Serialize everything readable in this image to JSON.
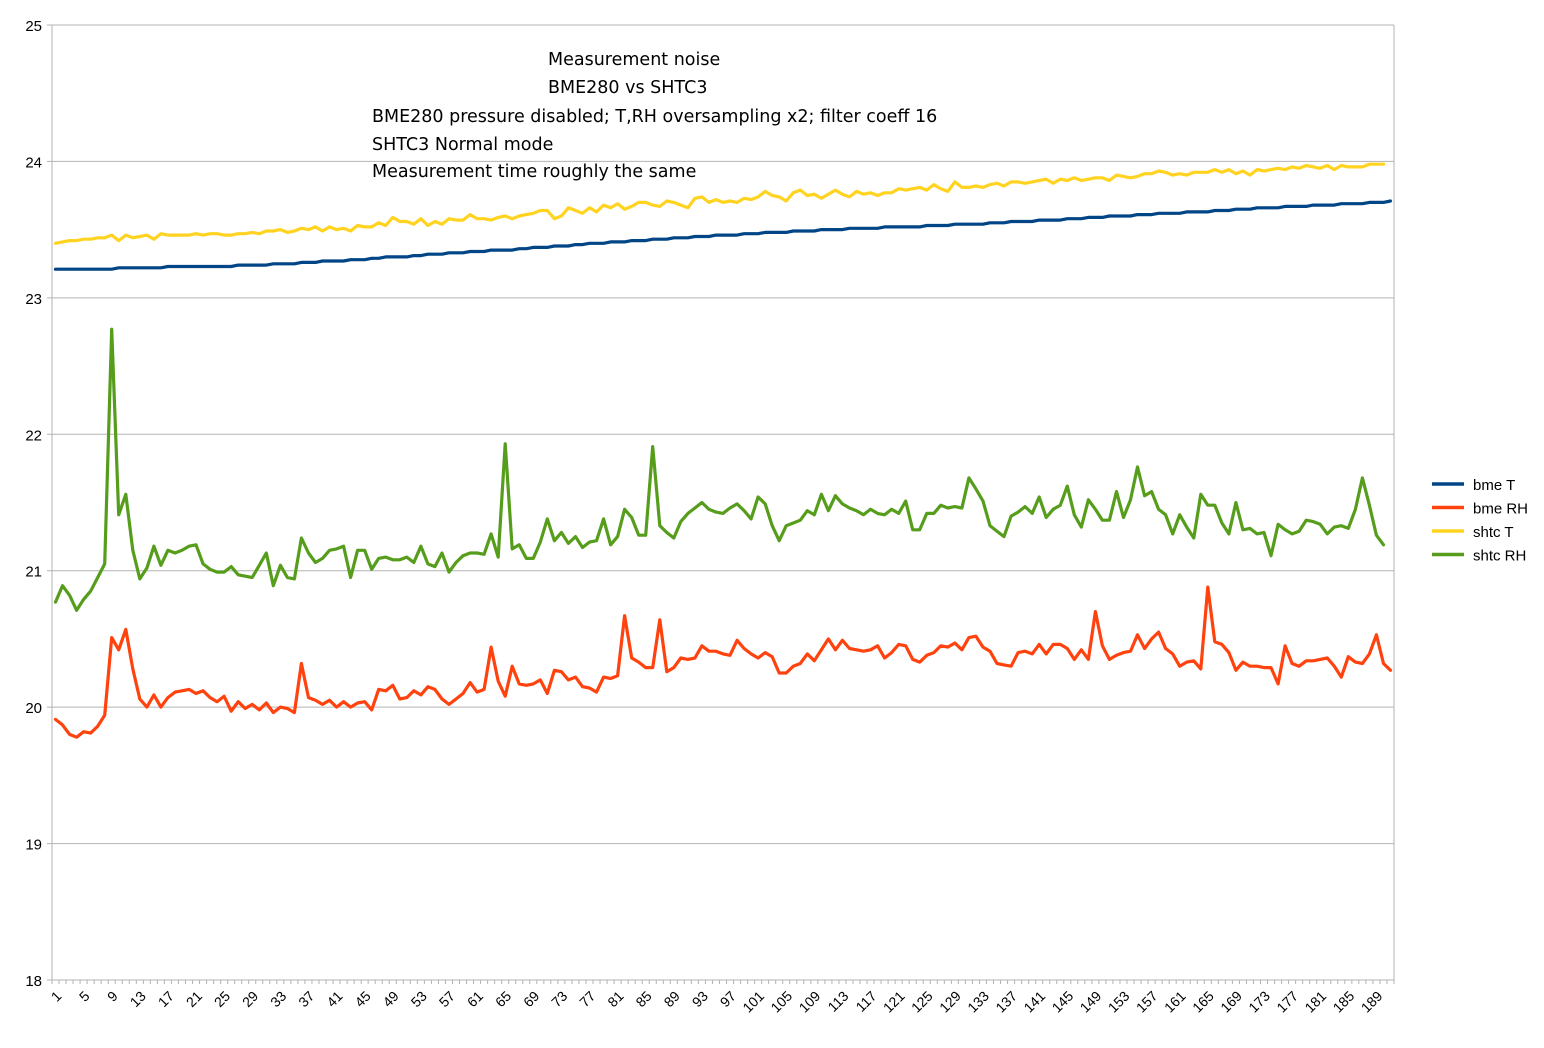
{
  "chart_data": {
    "type": "line",
    "annotations": [
      "Measurement noise",
      "BME280 vs SHTC3",
      "BME280 pressure disabled; T,RH oversampling x2; filter coeff 16",
      "SHTC3 Normal mode",
      "Measurement time roughly the same"
    ],
    "ylim": [
      18,
      25
    ],
    "yticks": [
      18,
      19,
      20,
      21,
      22,
      23,
      24,
      25
    ],
    "x_range": [
      1,
      191
    ],
    "xticks": [
      1,
      5,
      9,
      13,
      17,
      21,
      25,
      29,
      33,
      37,
      41,
      45,
      49,
      53,
      57,
      61,
      65,
      69,
      73,
      77,
      81,
      85,
      89,
      93,
      97,
      101,
      105,
      109,
      113,
      117,
      121,
      125,
      129,
      133,
      137,
      141,
      145,
      149,
      153,
      157,
      161,
      165,
      169,
      173,
      177,
      181,
      185,
      189
    ],
    "grid": true,
    "legend_position": "right",
    "series": [
      {
        "name": "bme T",
        "color": "#004586",
        "values": [
          23.21,
          23.21,
          23.21,
          23.21,
          23.21,
          23.21,
          23.21,
          23.21,
          23.21,
          23.22,
          23.22,
          23.22,
          23.22,
          23.22,
          23.22,
          23.22,
          23.23,
          23.23,
          23.23,
          23.23,
          23.23,
          23.23,
          23.23,
          23.23,
          23.23,
          23.23,
          23.24,
          23.24,
          23.24,
          23.24,
          23.24,
          23.25,
          23.25,
          23.25,
          23.25,
          23.26,
          23.26,
          23.26,
          23.27,
          23.27,
          23.27,
          23.27,
          23.28,
          23.28,
          23.28,
          23.29,
          23.29,
          23.3,
          23.3,
          23.3,
          23.3,
          23.31,
          23.31,
          23.32,
          23.32,
          23.32,
          23.33,
          23.33,
          23.33,
          23.34,
          23.34,
          23.34,
          23.35,
          23.35,
          23.35,
          23.35,
          23.36,
          23.36,
          23.37,
          23.37,
          23.37,
          23.38,
          23.38,
          23.38,
          23.39,
          23.39,
          23.4,
          23.4,
          23.4,
          23.41,
          23.41,
          23.41,
          23.42,
          23.42,
          23.42,
          23.43,
          23.43,
          23.43,
          23.44,
          23.44,
          23.44,
          23.45,
          23.45,
          23.45,
          23.46,
          23.46,
          23.46,
          23.46,
          23.47,
          23.47,
          23.47,
          23.48,
          23.48,
          23.48,
          23.48,
          23.49,
          23.49,
          23.49,
          23.49,
          23.5,
          23.5,
          23.5,
          23.5,
          23.51,
          23.51,
          23.51,
          23.51,
          23.51,
          23.52,
          23.52,
          23.52,
          23.52,
          23.52,
          23.52,
          23.53,
          23.53,
          23.53,
          23.53,
          23.54,
          23.54,
          23.54,
          23.54,
          23.54,
          23.55,
          23.55,
          23.55,
          23.56,
          23.56,
          23.56,
          23.56,
          23.57,
          23.57,
          23.57,
          23.57,
          23.58,
          23.58,
          23.58,
          23.59,
          23.59,
          23.59,
          23.6,
          23.6,
          23.6,
          23.6,
          23.61,
          23.61,
          23.61,
          23.62,
          23.62,
          23.62,
          23.62,
          23.63,
          23.63,
          23.63,
          23.63,
          23.64,
          23.64,
          23.64,
          23.65,
          23.65,
          23.65,
          23.66,
          23.66,
          23.66,
          23.66,
          23.67,
          23.67,
          23.67,
          23.67,
          23.68,
          23.68,
          23.68,
          23.68,
          23.69,
          23.69,
          23.69,
          23.69,
          23.7,
          23.7,
          23.7,
          23.71
        ]
      },
      {
        "name": "bme RH",
        "color": "#ff420e",
        "values": [
          19.91,
          19.87,
          19.8,
          19.78,
          19.82,
          19.81,
          19.86,
          19.94,
          20.51,
          20.42,
          20.57,
          20.28,
          20.06,
          20.0,
          20.09,
          20.0,
          20.07,
          20.11,
          20.12,
          20.13,
          20.1,
          20.12,
          20.07,
          20.04,
          20.08,
          19.97,
          20.04,
          19.99,
          20.02,
          19.98,
          20.03,
          19.96,
          20.0,
          19.99,
          19.96,
          20.32,
          20.07,
          20.05,
          20.02,
          20.05,
          20.0,
          20.04,
          20.0,
          20.03,
          20.04,
          19.98,
          20.13,
          20.12,
          20.16,
          20.06,
          20.07,
          20.12,
          20.09,
          20.15,
          20.13,
          20.06,
          20.02,
          20.06,
          20.1,
          20.18,
          20.11,
          20.13,
          20.44,
          20.19,
          20.08,
          20.3,
          20.17,
          20.16,
          20.17,
          20.2,
          20.1,
          20.27,
          20.26,
          20.2,
          20.22,
          20.15,
          20.14,
          20.11,
          20.22,
          20.21,
          20.23,
          20.67,
          20.36,
          20.33,
          20.29,
          20.29,
          20.64,
          20.26,
          20.29,
          20.36,
          20.35,
          20.36,
          20.45,
          20.41,
          20.41,
          20.39,
          20.38,
          20.49,
          20.43,
          20.39,
          20.36,
          20.4,
          20.37,
          20.25,
          20.25,
          20.3,
          20.32,
          20.39,
          20.34,
          20.42,
          20.5,
          20.42,
          20.49,
          20.43,
          20.42,
          20.41,
          20.42,
          20.45,
          20.36,
          20.4,
          20.46,
          20.45,
          20.35,
          20.33,
          20.38,
          20.4,
          20.45,
          20.44,
          20.47,
          20.42,
          20.51,
          20.52,
          20.44,
          20.41,
          20.32,
          20.31,
          20.3,
          20.4,
          20.41,
          20.39,
          20.46,
          20.39,
          20.46,
          20.46,
          20.43,
          20.35,
          20.42,
          20.35,
          20.7,
          20.45,
          20.35,
          20.38,
          20.4,
          20.41,
          20.53,
          20.43,
          20.5,
          20.55,
          20.43,
          20.39,
          20.3,
          20.33,
          20.34,
          20.28,
          20.88,
          20.48,
          20.46,
          20.4,
          20.27,
          20.33,
          20.3,
          20.3,
          20.29,
          20.29,
          20.17,
          20.45,
          20.32,
          20.3,
          20.34,
          20.34,
          20.35,
          20.36,
          20.3,
          20.22,
          20.37,
          20.33,
          20.32,
          20.39,
          20.53,
          20.32,
          20.27
        ]
      },
      {
        "name": "shtc T",
        "color": "#ffd320",
        "values": [
          23.4,
          23.41,
          23.42,
          23.42,
          23.43,
          23.43,
          23.44,
          23.44,
          23.46,
          23.42,
          23.46,
          23.44,
          23.45,
          23.46,
          23.43,
          23.47,
          23.46,
          23.46,
          23.46,
          23.46,
          23.47,
          23.46,
          23.47,
          23.47,
          23.46,
          23.46,
          23.47,
          23.47,
          23.48,
          23.47,
          23.49,
          23.49,
          23.5,
          23.48,
          23.49,
          23.51,
          23.5,
          23.52,
          23.49,
          23.52,
          23.5,
          23.51,
          23.49,
          23.53,
          23.52,
          23.52,
          23.55,
          23.53,
          23.59,
          23.56,
          23.56,
          23.54,
          23.58,
          23.53,
          23.56,
          23.54,
          23.58,
          23.57,
          23.57,
          23.61,
          23.58,
          23.58,
          23.57,
          23.59,
          23.6,
          23.58,
          23.6,
          23.61,
          23.62,
          23.64,
          23.64,
          23.58,
          23.6,
          23.66,
          23.64,
          23.62,
          23.66,
          23.63,
          23.68,
          23.66,
          23.69,
          23.65,
          23.67,
          23.7,
          23.7,
          23.68,
          23.67,
          23.71,
          23.7,
          23.68,
          23.66,
          23.73,
          23.74,
          23.7,
          23.72,
          23.7,
          23.71,
          23.7,
          23.73,
          23.72,
          23.74,
          23.78,
          23.75,
          23.74,
          23.71,
          23.77,
          23.79,
          23.75,
          23.76,
          23.73,
          23.76,
          23.79,
          23.76,
          23.74,
          23.78,
          23.76,
          23.77,
          23.75,
          23.77,
          23.77,
          23.8,
          23.79,
          23.8,
          23.81,
          23.79,
          23.83,
          23.8,
          23.78,
          23.85,
          23.81,
          23.81,
          23.82,
          23.81,
          23.83,
          23.84,
          23.82,
          23.85,
          23.85,
          23.84,
          23.85,
          23.86,
          23.87,
          23.84,
          23.87,
          23.86,
          23.88,
          23.86,
          23.87,
          23.88,
          23.88,
          23.86,
          23.9,
          23.89,
          23.88,
          23.89,
          23.91,
          23.91,
          23.93,
          23.92,
          23.9,
          23.91,
          23.9,
          23.92,
          23.92,
          23.92,
          23.94,
          23.92,
          23.94,
          23.91,
          23.93,
          23.9,
          23.94,
          23.93,
          23.94,
          23.95,
          23.94,
          23.96,
          23.95,
          23.97,
          23.96,
          23.95,
          23.97,
          23.94,
          23.97,
          23.96,
          23.96,
          23.96,
          23.98,
          23.98,
          23.98
        ]
      },
      {
        "name": "shtc RH",
        "color": "#579d1c",
        "values": [
          20.77,
          20.89,
          20.82,
          20.71,
          20.79,
          20.85,
          20.95,
          21.05,
          22.77,
          21.41,
          21.56,
          21.15,
          20.94,
          21.02,
          21.18,
          21.04,
          21.15,
          21.13,
          21.15,
          21.18,
          21.19,
          21.05,
          21.01,
          20.99,
          20.99,
          21.03,
          20.97,
          20.96,
          20.95,
          21.04,
          21.13,
          20.89,
          21.04,
          20.95,
          20.94,
          21.24,
          21.13,
          21.06,
          21.09,
          21.15,
          21.16,
          21.18,
          20.95,
          21.15,
          21.15,
          21.01,
          21.09,
          21.1,
          21.08,
          21.08,
          21.1,
          21.06,
          21.18,
          21.05,
          21.03,
          21.13,
          20.99,
          21.06,
          21.11,
          21.13,
          21.13,
          21.12,
          21.27,
          21.1,
          21.93,
          21.16,
          21.19,
          21.09,
          21.09,
          21.21,
          21.38,
          21.22,
          21.28,
          21.2,
          21.25,
          21.17,
          21.21,
          21.22,
          21.38,
          21.19,
          21.25,
          21.45,
          21.39,
          21.26,
          21.26,
          21.91,
          21.33,
          21.28,
          21.24,
          21.36,
          21.42,
          21.46,
          21.5,
          21.45,
          21.43,
          21.42,
          21.46,
          21.49,
          21.44,
          21.38,
          21.54,
          21.49,
          21.33,
          21.22,
          21.33,
          21.35,
          21.37,
          21.44,
          21.41,
          21.56,
          21.44,
          21.55,
          21.49,
          21.46,
          21.44,
          21.41,
          21.45,
          21.42,
          21.41,
          21.45,
          21.42,
          21.51,
          21.3,
          21.3,
          21.42,
          21.42,
          21.48,
          21.46,
          21.47,
          21.46,
          21.68,
          21.6,
          21.51,
          21.33,
          21.29,
          21.25,
          21.4,
          21.43,
          21.47,
          21.42,
          21.54,
          21.39,
          21.45,
          21.48,
          21.62,
          21.41,
          21.32,
          21.52,
          21.45,
          21.37,
          21.37,
          21.58,
          21.39,
          21.52,
          21.76,
          21.55,
          21.58,
          21.45,
          21.41,
          21.27,
          21.41,
          21.32,
          21.24,
          21.56,
          21.48,
          21.48,
          21.35,
          21.27,
          21.5,
          21.3,
          21.31,
          21.27,
          21.28,
          21.11,
          21.34,
          21.3,
          21.27,
          21.29,
          21.37,
          21.36,
          21.34,
          21.27,
          21.32,
          21.33,
          21.31,
          21.45,
          21.68,
          21.48,
          21.26,
          21.19
        ]
      }
    ]
  }
}
